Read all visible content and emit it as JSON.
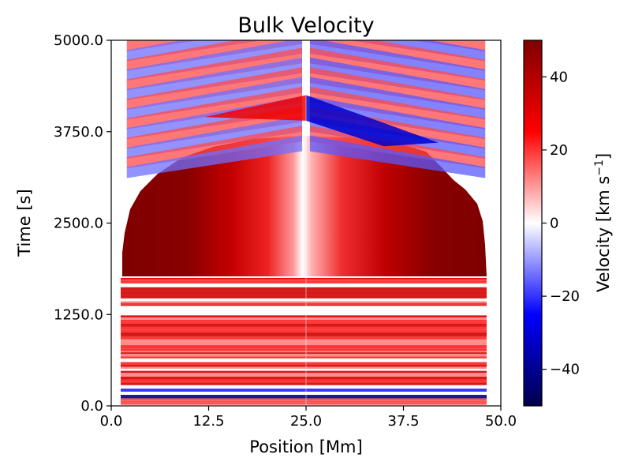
{
  "chart_data": {
    "type": "heatmap",
    "title": "Bulk Velocity",
    "xlabel": "Position [Mm]",
    "ylabel": "Time [s]",
    "xlim": [
      0.0,
      50.0
    ],
    "ylim": [
      0.0,
      5000.0
    ],
    "xticks": [
      0.0,
      12.5,
      25.0,
      37.5,
      50.0
    ],
    "xtick_labels": [
      "0.0",
      "12.5",
      "25.0",
      "37.5",
      "50.0"
    ],
    "yticks": [
      0.0,
      1250.0,
      2500.0,
      3750.0,
      5000.0
    ],
    "ytick_labels": [
      "0.0",
      "1250.0",
      "2500.0",
      "3750.0",
      "5000.0"
    ],
    "colorbar": {
      "label": "Velocity [km s",
      "label_superscript": "−1",
      "label_close": "]",
      "colormap": "seismic",
      "vmin": -50,
      "vmax": 50,
      "ticks": [
        -40,
        -20,
        0,
        20,
        40
      ],
      "tick_labels": [
        "−40",
        "−20",
        "0",
        "20",
        "40"
      ]
    },
    "colors": {
      "deep_red": "#800000",
      "red": "#ff0000",
      "white": "#ffffff",
      "blue": "#0000ff",
      "deep_blue": "#00004c"
    },
    "regions": {
      "uniform_heating_plateau_time_range": [
        1750,
        3500
      ],
      "uniform_heating_plateau_velocity": 45,
      "low_time_oscillation_range": [
        0,
        1750
      ],
      "wave_front_onset_time": 3800,
      "center_position": 25.0
    }
  }
}
